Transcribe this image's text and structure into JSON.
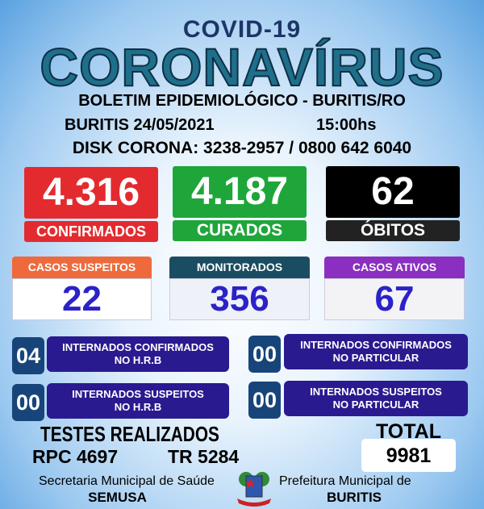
{
  "header": {
    "title_top": "COVID-19",
    "title_main": "CORONAVÍRUS",
    "subtitle": "BOLETIM EPIDEMIOLÓGICO - BURITIS/RO",
    "date": "BURITIS 24/05/2021",
    "time": "15:00hs",
    "disk": "DISK CORONA: 3238-2957 / 0800 642 6040"
  },
  "main_stats": [
    {
      "value": "4.316",
      "label": "CONFIRMADOS",
      "color": "#e32b2f"
    },
    {
      "value": "4.187",
      "label": "CURADOS",
      "color": "#1fa63a"
    },
    {
      "value": "62",
      "label": "ÓBITOS",
      "color": "#000000"
    }
  ],
  "secondary_stats": [
    {
      "label": "CASOS SUSPEITOS",
      "value": "22",
      "color": "#ee6a3c"
    },
    {
      "label": "MONITORADOS",
      "value": "356",
      "color": "#1b4d62"
    },
    {
      "label": "CASOS ATIVOS",
      "value": "67",
      "color": "#8a2fc0"
    }
  ],
  "hospital": [
    {
      "value": "04",
      "line1": "INTERNADOS CONFIRMADOS",
      "line2": "NO H.R.B"
    },
    {
      "value": "00",
      "line1": "INTERNADOS CONFIRMADOS",
      "line2": "NO PARTICULAR"
    },
    {
      "value": "00",
      "line1": "INTERNADOS SUSPEITOS",
      "line2": "NO H.R.B"
    },
    {
      "value": "00",
      "line1": "INTERNADOS SUSPEITOS",
      "line2": "NO PARTICULAR"
    }
  ],
  "tests": {
    "title": "TESTES REALIZADOS",
    "rpc": "RPC 4697",
    "tr": "TR 5284",
    "total_label": "TOTAL",
    "total": "9981"
  },
  "footer": {
    "left_line1": "Secretaria Municipal de Saúde",
    "left_line2": "SEMUSA",
    "right_line1": "Prefeitura Municipal de",
    "right_line2": "BURITIS",
    "logo": "buritis-coat-of-arms"
  }
}
